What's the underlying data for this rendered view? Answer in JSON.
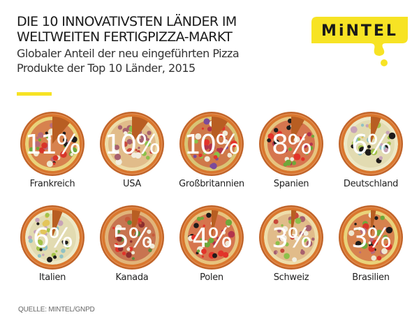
{
  "header": {
    "title_line1": "DIE 10 INNOVATIVSTEN LÄNDER IM",
    "title_line2": "WELTWEITEN FERTIGPIZZA-MARKT",
    "subtitle_line1": "Globaler Anteil der neu eingeführten Pizza",
    "subtitle_line2": "Produkte der Top 10 Länder, 2015"
  },
  "logo": {
    "text": "MiNTEL",
    "color": "#F7E324"
  },
  "colors": {
    "accent": "#F7E324",
    "crust": "#D9772E",
    "crust_dark": "#B85E22",
    "pan": "#C1652A"
  },
  "source": "QUELLE: MINTEL/GNPD",
  "chart_data": {
    "type": "pie",
    "title": "DIE 10 INNOVATIVSTEN LÄNDER IM WELTWEITEN FERTIGPIZZA-MARKT",
    "subtitle": "Globaler Anteil der neu eingeführten Pizza Produkte der Top 10 Länder, 2015",
    "unit": "%",
    "categories": [
      "Frankreich",
      "USA",
      "Großbritannien",
      "Spanien",
      "Deutschland",
      "Italien",
      "Kanada",
      "Polen",
      "Schweiz",
      "Brasilien"
    ],
    "values": [
      11,
      10,
      10,
      8,
      6,
      6,
      5,
      4,
      3,
      3
    ],
    "labels": [
      "11%",
      "10%",
      "10%",
      "8%",
      "6%",
      "6%",
      "5%",
      "4%",
      "3%",
      "3%"
    ],
    "toppings": [
      "mixed",
      "salami",
      "pepper",
      "tomato",
      "veggie",
      "veggie",
      "meat",
      "tomato",
      "salami",
      "mixed"
    ],
    "source": "QUELLE: MINTEL/GNPD"
  }
}
